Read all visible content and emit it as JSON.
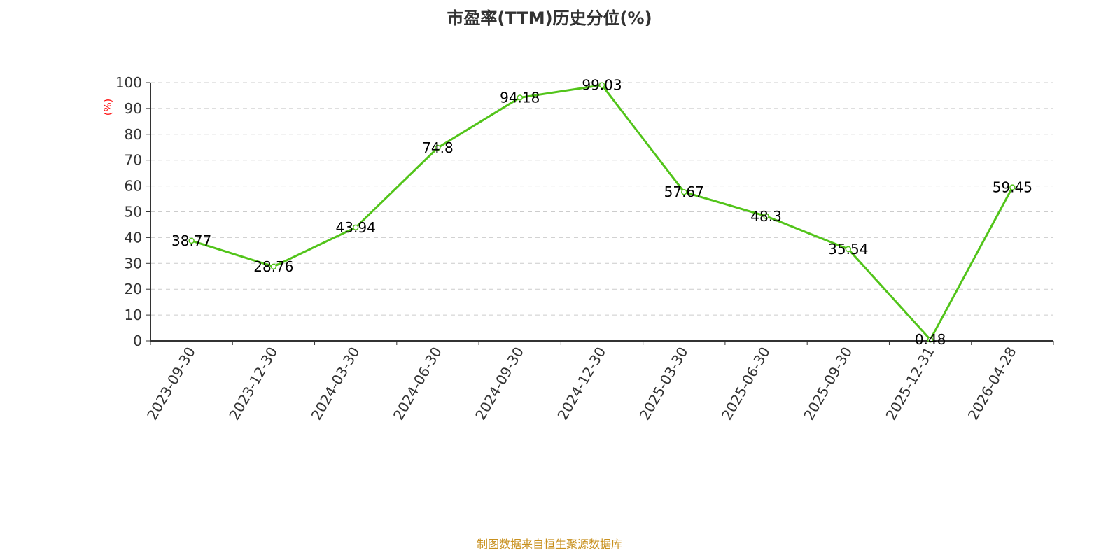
{
  "chart_data": {
    "type": "line",
    "title": "市盈率(TTM)历史分位(%)",
    "ylabel": "(%)",
    "xlabel": "",
    "categories": [
      "2023-09-30",
      "2023-12-30",
      "2024-03-30",
      "2024-06-30",
      "2024-09-30",
      "2024-12-30",
      "2025-03-30",
      "2025-06-30",
      "2025-09-30",
      "2025-12-31",
      "2026-04-28"
    ],
    "values": [
      38.77,
      28.76,
      43.94,
      74.8,
      94.18,
      99.03,
      57.67,
      48.3,
      35.54,
      0.48,
      59.45
    ],
    "ylim": [
      0,
      100
    ],
    "yticks": [
      0,
      10,
      20,
      30,
      40,
      50,
      60,
      70,
      80,
      90,
      100
    ],
    "grid": true,
    "line_color": "#52c41a",
    "ylabel_color": "#ff0000"
  },
  "source": "制图数据来自恒生聚源数据库"
}
